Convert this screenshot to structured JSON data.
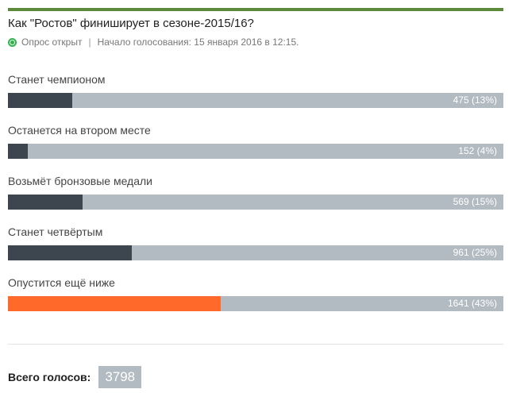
{
  "poll": {
    "question": "Как \"Ростов\" финиширует в сезоне-2015/16?",
    "status": "Опрос открыт",
    "separator": "|",
    "started": "Начало голосования: 15 января 2016 в 12:15.",
    "accent_color": "#5c8a3a",
    "options": [
      {
        "label": "Станет чемпионом",
        "votes": 475,
        "percent": 13,
        "value_text": "475 (13%)",
        "highlight": false
      },
      {
        "label": "Останется на втором месте",
        "votes": 152,
        "percent": 4,
        "value_text": "152 (4%)",
        "highlight": false
      },
      {
        "label": "Возьмёт бронзовые медали",
        "votes": 569,
        "percent": 15,
        "value_text": "569 (15%)",
        "highlight": false
      },
      {
        "label": "Станет четвёртым",
        "votes": 961,
        "percent": 25,
        "value_text": "961 (25%)",
        "highlight": false
      },
      {
        "label": "Опустится ещё ниже",
        "votes": 1641,
        "percent": 43,
        "value_text": "1641 (43%)",
        "highlight": true
      }
    ],
    "total_label": "Всего голосов:",
    "total_value": "3798"
  }
}
